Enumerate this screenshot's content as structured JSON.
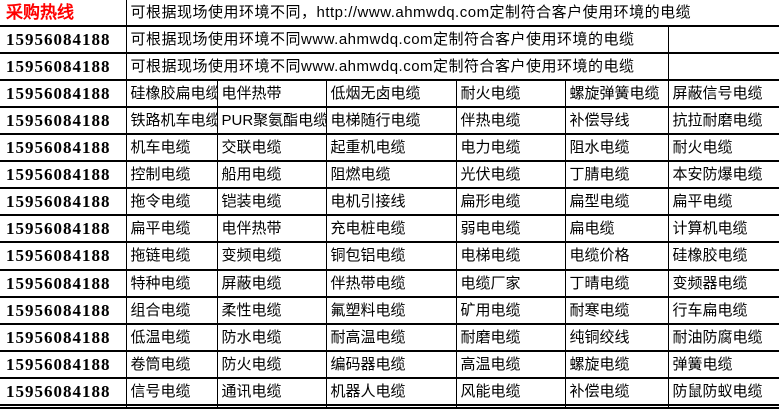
{
  "colors": {
    "accent_red": "#ff0000",
    "text_black": "#000000",
    "border_black": "#000000",
    "background": "#ffffff"
  },
  "hotline": {
    "label": "采购热线",
    "phone": "15956084188"
  },
  "banner": {
    "rows": [
      "可根据现场使用环境不同，http://www.ahmwdq.com定制符合客户使用环境的电缆",
      "可根据现场使用环境不同www.ahmwdq.com定制符合客户使用环境的电缆",
      "可根据现场使用环境不同www.ahmwdq.com定制符合客户使用环境的电缆"
    ]
  },
  "products": {
    "rows": [
      [
        "硅橡胶扁电缆",
        "电伴热带",
        "低烟无卤电缆",
        "耐火电缆",
        "螺旋弹簧电缆",
        "屏蔽信号电缆"
      ],
      [
        "铁路机车电缆",
        "PUR聚氨酯电缆",
        "电梯随行电缆",
        "伴热电缆",
        "补偿导线",
        "抗拉耐磨电缆"
      ],
      [
        "机车电缆",
        "交联电缆",
        "起重机电缆",
        "电力电缆",
        "阻水电缆",
        "耐火电缆"
      ],
      [
        "控制电缆",
        "船用电缆",
        "阻燃电缆",
        "光伏电缆",
        "丁腈电缆",
        "本安防爆电缆"
      ],
      [
        "拖令电缆",
        "铠装电缆",
        "电机引接线",
        "扁形电缆",
        "扁型电缆",
        "扁平电缆"
      ],
      [
        "扁平电缆",
        "电伴热带",
        "充电桩电缆",
        "弱电电缆",
        "扁电缆",
        "计算机电缆"
      ],
      [
        "拖链电缆",
        "变频电缆",
        "铜包铝电缆",
        "电梯电缆",
        "电缆价格",
        "硅橡胶电缆"
      ],
      [
        "特种电缆",
        "屏蔽电缆",
        "伴热带电缆",
        "电缆厂家",
        "丁晴电缆",
        "变频器电缆"
      ],
      [
        "组合电缆",
        "柔性电缆",
        "氟塑料电缆",
        "矿用电缆",
        "耐寒电缆",
        "行车扁电缆"
      ],
      [
        "低温电缆",
        "防水电缆",
        "耐高温电缆",
        "耐磨电缆",
        "纯铜绞线",
        "耐油防腐电缆"
      ],
      [
        "卷筒电缆",
        "防火电缆",
        "编码器电缆",
        "高温电缆",
        "螺旋电缆",
        "弹簧电缆"
      ],
      [
        "信号电缆",
        "通讯电缆",
        "机器人电缆",
        "风能电缆",
        "补偿电缆",
        "防鼠防蚁电缆"
      ]
    ]
  }
}
